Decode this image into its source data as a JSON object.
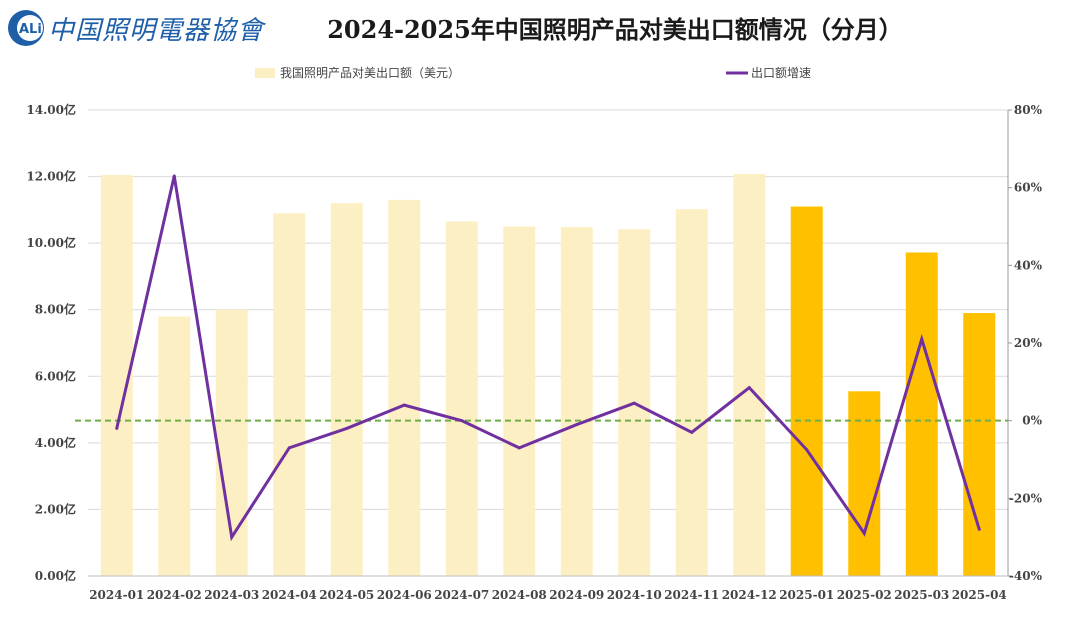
{
  "logo": {
    "text": "中国照明電器協會",
    "mark_text": "ALi"
  },
  "chart_data": {
    "type": "bar+line",
    "title": "2024-2025年中国照明产品对美出口额情况（分月）",
    "categories": [
      "2024-01",
      "2024-02",
      "2024-03",
      "2024-04",
      "2024-05",
      "2024-06",
      "2024-07",
      "2024-08",
      "2024-09",
      "2024-10",
      "2024-11",
      "2024-12",
      "2025-01",
      "2025-02",
      "2025-03",
      "2025-04"
    ],
    "bar_series": {
      "name": "我国照明产品对美出口额（美元）",
      "values": [
        12.05,
        7.8,
        8.0,
        10.9,
        11.2,
        11.3,
        10.65,
        10.5,
        10.48,
        10.42,
        11.02,
        12.08,
        11.1,
        5.55,
        9.72,
        7.9
      ],
      "colors": {
        "2024": "#fdefc4",
        "2025": "#ffc000"
      }
    },
    "line_series": {
      "name": "出口额增速",
      "values": [
        -2,
        63,
        -30,
        -7,
        -2,
        4,
        0,
        -7,
        -1,
        4.5,
        -3,
        8.5,
        -7.5,
        -29,
        21,
        -28
      ],
      "color": "#7030a0"
    },
    "y_left": {
      "min": 0,
      "max": 14,
      "ticks": [
        "0.00亿",
        "2.00亿",
        "4.00亿",
        "6.00亿",
        "8.00亿",
        "10.00亿",
        "12.00亿",
        "14.00亿"
      ]
    },
    "y_right": {
      "min": -40,
      "max": 80,
      "ticks": [
        "-40%",
        "-20%",
        "0%",
        "20%",
        "40%",
        "60%",
        "80%"
      ]
    },
    "reference_line": {
      "value": 0,
      "color": "#70ad47",
      "style": "dashed"
    },
    "grid": true,
    "legend": "top"
  }
}
